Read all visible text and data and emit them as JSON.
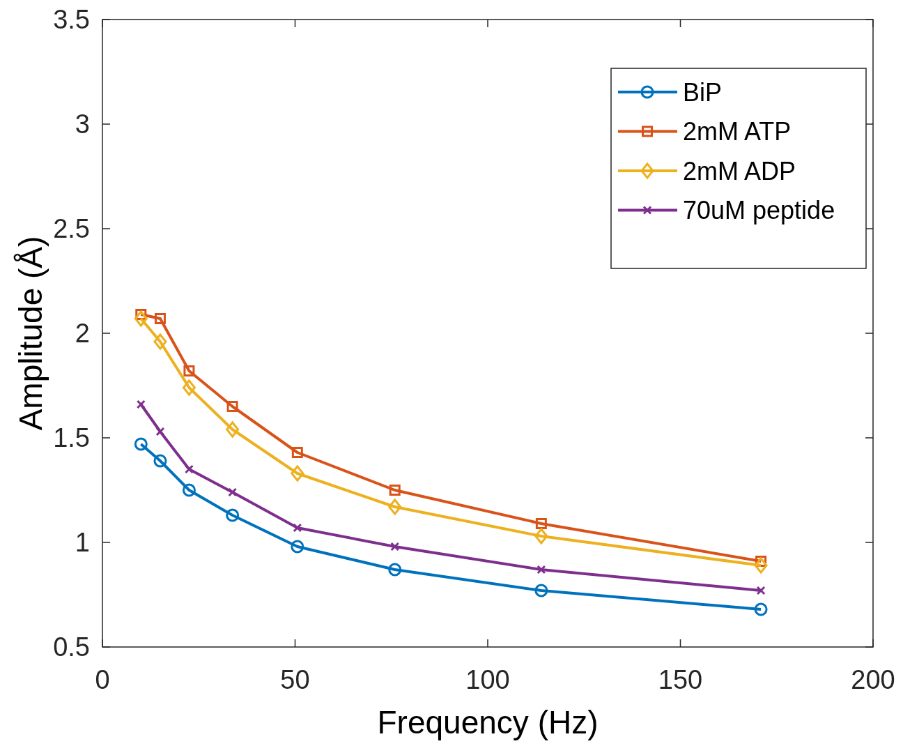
{
  "chart_data": {
    "type": "line",
    "xlabel": "Frequency (Hz)",
    "ylabel": "Amplitude (Å)",
    "x": [
      10,
      15,
      22.5,
      33.75,
      50.6,
      75.9,
      113.9,
      170.9
    ],
    "xlim": [
      0,
      200
    ],
    "xticks": [
      0,
      50,
      100,
      150,
      200
    ],
    "ylim": [
      0.5,
      3.5
    ],
    "yticks": [
      0.5,
      1,
      1.5,
      2,
      2.5,
      3,
      3.5
    ],
    "grid": false,
    "legend": "top right",
    "line_style": "solid",
    "series": [
      {
        "name": "BiP",
        "color": "#0072bd",
        "marker": "circle",
        "values": [
          1.47,
          1.39,
          1.25,
          1.13,
          0.98,
          0.87,
          0.77,
          0.68
        ]
      },
      {
        "name": "2mM ATP",
        "color": "#d95319",
        "marker": "square",
        "values": [
          2.09,
          2.07,
          1.82,
          1.65,
          1.43,
          1.25,
          1.09,
          0.91
        ]
      },
      {
        "name": "2mM ADP",
        "color": "#edb120",
        "marker": "diamond",
        "values": [
          2.07,
          1.96,
          1.74,
          1.54,
          1.33,
          1.17,
          1.03,
          0.89
        ]
      },
      {
        "name": "70uM peptide",
        "color": "#7e2f8e",
        "marker": "cross",
        "values": [
          1.66,
          1.53,
          1.35,
          1.24,
          1.07,
          0.98,
          0.87,
          0.77
        ]
      }
    ]
  }
}
